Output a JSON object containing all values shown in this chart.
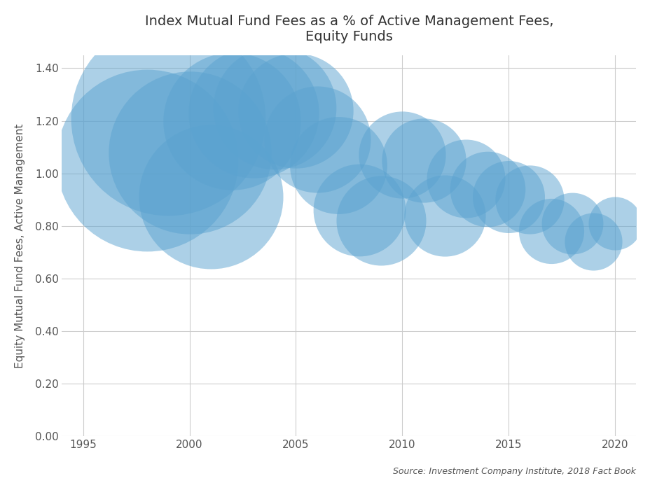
{
  "title": "Index Mutual Fund Fees as a % of Active Management Fees,\nEquity Funds",
  "xlabel": "",
  "ylabel": "Equity Mutual Fund Fees, Active Management",
  "source_text": "Source: Investment Company Institute, 2018 Fact Book",
  "xlim": [
    1994,
    2021
  ],
  "ylim": [
    0.0,
    1.45
  ],
  "xticks": [
    1995,
    2000,
    2005,
    2010,
    2015,
    2020
  ],
  "yticks": [
    0.0,
    0.2,
    0.4,
    0.6,
    0.8,
    1.0,
    1.2,
    1.4
  ],
  "background_color": "#ffffff",
  "bubble_color": "#5ba3d0",
  "bubble_alpha": 0.5,
  "data": [
    {
      "year": 1998,
      "value": 1.05,
      "size": 35000
    },
    {
      "year": 1999,
      "value": 1.21,
      "size": 40000
    },
    {
      "year": 2000,
      "value": 1.08,
      "size": 28000
    },
    {
      "year": 2001,
      "value": 0.91,
      "size": 22000
    },
    {
      "year": 2002,
      "value": 1.2,
      "size": 20000
    },
    {
      "year": 2003,
      "value": 1.23,
      "size": 18000
    },
    {
      "year": 2004,
      "value": 1.25,
      "size": 16000
    },
    {
      "year": 2005,
      "value": 1.24,
      "size": 14000
    },
    {
      "year": 2006,
      "value": 1.13,
      "size": 12000
    },
    {
      "year": 2007,
      "value": 1.03,
      "size": 10000
    },
    {
      "year": 2008,
      "value": 0.86,
      "size": 9000
    },
    {
      "year": 2009,
      "value": 0.82,
      "size": 8500
    },
    {
      "year": 2010,
      "value": 1.07,
      "size": 8000
    },
    {
      "year": 2011,
      "value": 1.05,
      "size": 7500
    },
    {
      "year": 2012,
      "value": 0.84,
      "size": 7000
    },
    {
      "year": 2013,
      "value": 0.98,
      "size": 6500
    },
    {
      "year": 2014,
      "value": 0.94,
      "size": 6000
    },
    {
      "year": 2015,
      "value": 0.91,
      "size": 5500
    },
    {
      "year": 2016,
      "value": 0.9,
      "size": 5000
    },
    {
      "year": 2017,
      "value": 0.78,
      "size": 4500
    },
    {
      "year": 2018,
      "value": 0.81,
      "size": 4000
    },
    {
      "year": 2019,
      "value": 0.74,
      "size": 3500
    },
    {
      "year": 2020,
      "value": 0.81,
      "size": 3000
    }
  ]
}
